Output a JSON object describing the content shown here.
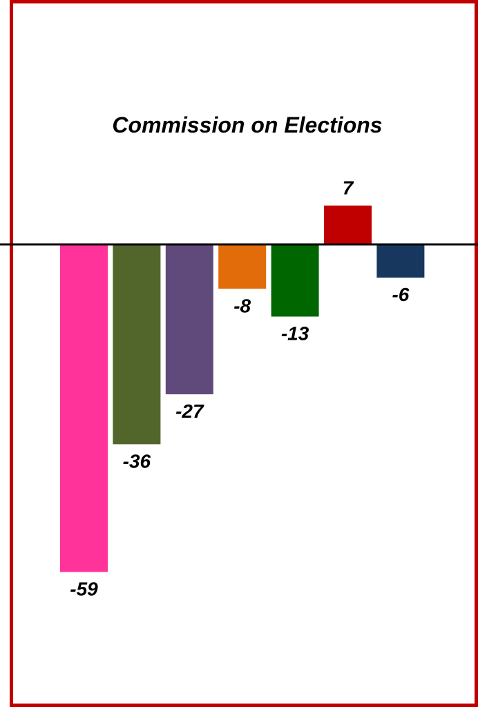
{
  "chart_data": {
    "type": "bar",
    "title": "Commission on Elections",
    "xlabel": "",
    "ylabel": "",
    "ylim": [
      -59,
      7
    ],
    "grid": false,
    "legend": "none",
    "baseline": 0,
    "values": [
      -59,
      -36,
      -27,
      -8,
      -13,
      7,
      -6
    ],
    "data_labels": [
      "-59",
      "-36",
      "-27",
      "-8",
      "-13",
      "7",
      "-6"
    ],
    "colors": [
      "#ff3399",
      "#52652b",
      "#604a7b",
      "#e36c0a",
      "#006600",
      "#c00000",
      "#17375e"
    ],
    "frame_color": "#c00000",
    "axis_line_color": "#000000"
  }
}
